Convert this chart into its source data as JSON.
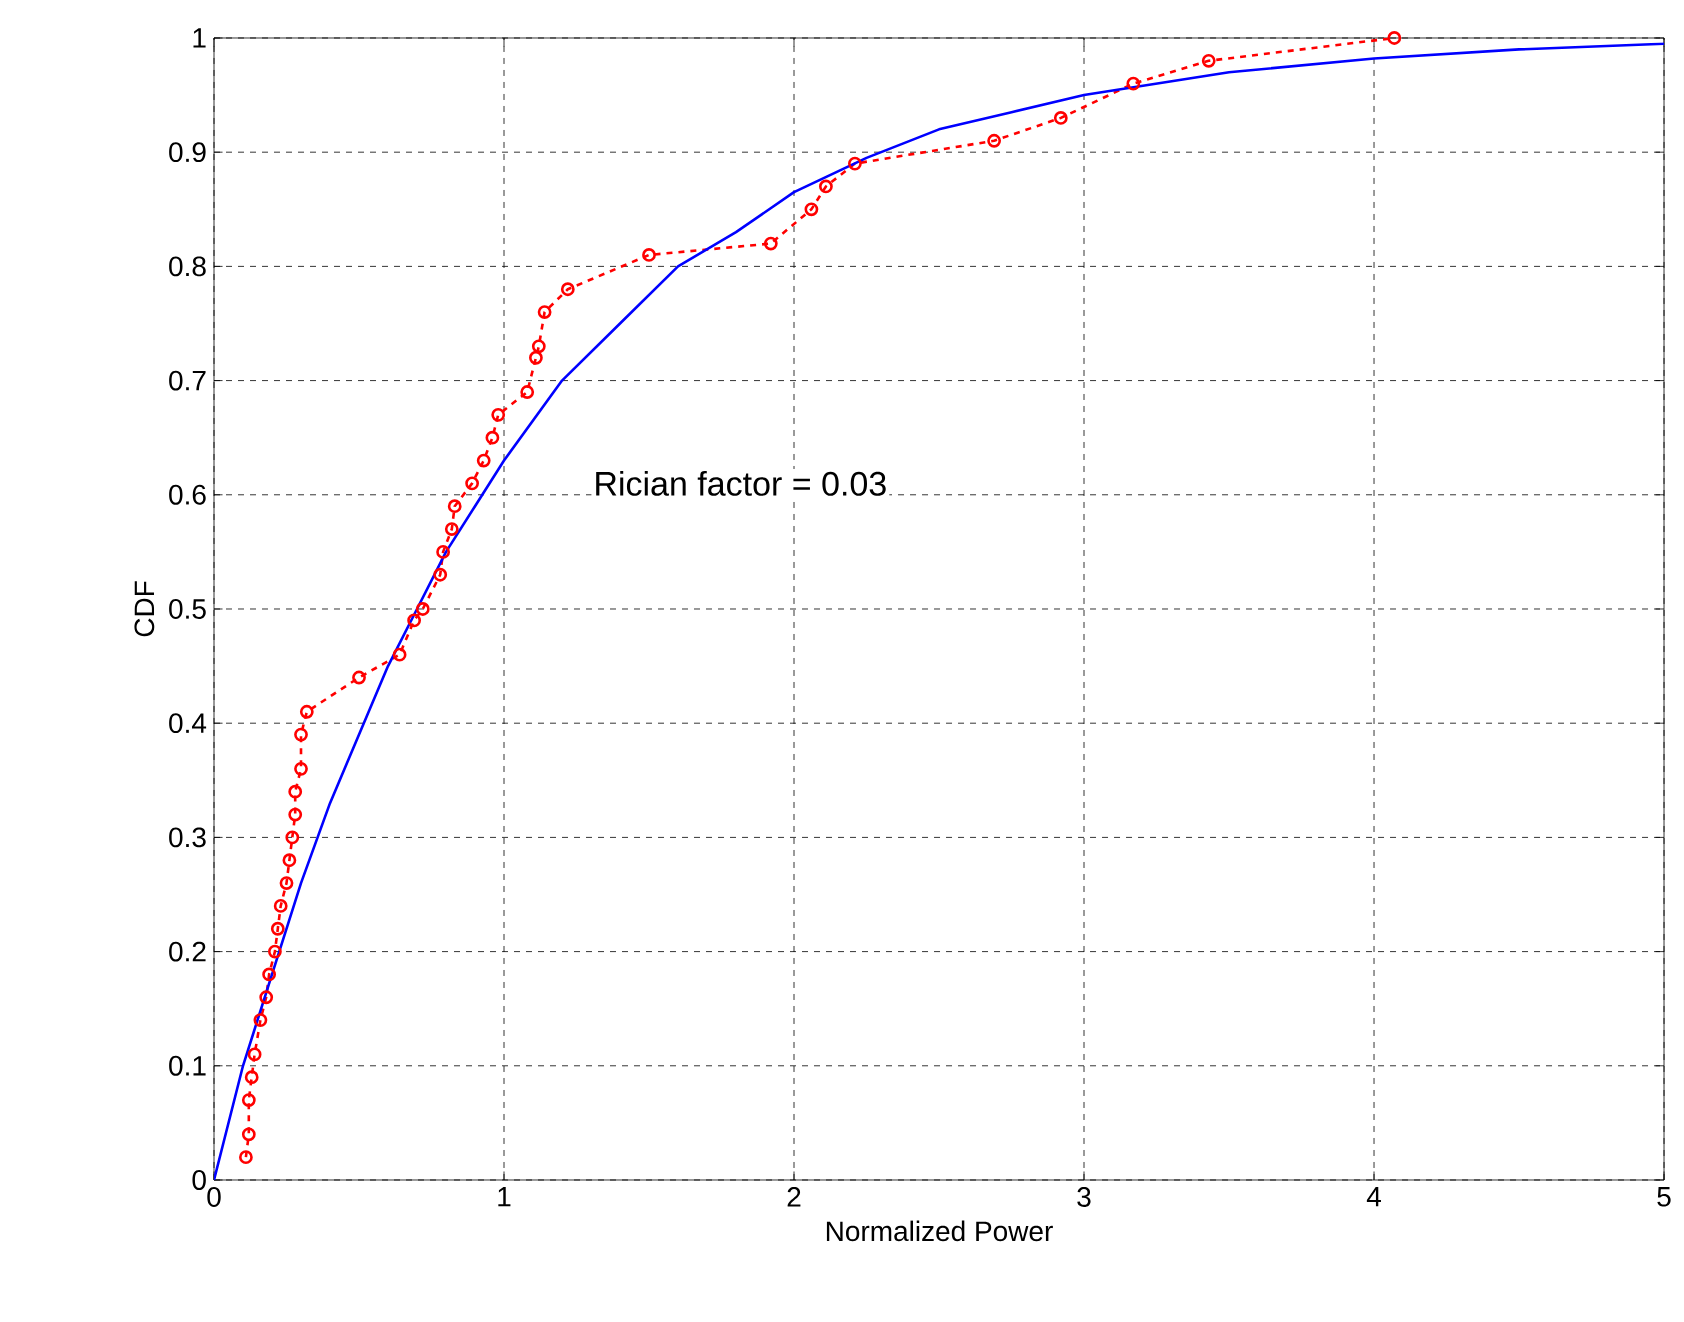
{
  "chart_data": {
    "type": "line",
    "xlabel": "Normalized Power",
    "ylabel": "CDF",
    "annotations": [
      "Rician factor = 0.03"
    ],
    "series": [
      {
        "color": "#ff0000",
        "marker": "circle",
        "line_style": "dashed",
        "x": [
          0.11,
          0.12,
          0.12,
          0.13,
          0.14,
          0.16,
          0.18,
          0.19,
          0.21,
          0.22,
          0.23,
          0.25,
          0.26,
          0.27,
          0.28,
          0.28,
          0.3,
          0.3,
          0.32,
          0.5,
          0.64,
          0.69,
          0.72,
          0.78,
          0.79,
          0.82,
          0.83,
          0.89,
          0.93,
          0.96,
          0.98,
          1.08,
          1.11,
          1.12,
          1.14,
          1.22,
          1.5,
          1.92,
          2.06,
          2.11,
          2.21,
          2.69,
          2.92,
          3.17,
          3.43,
          4.07
        ],
        "values": [
          0.02,
          0.04,
          0.07,
          0.09,
          0.11,
          0.14,
          0.16,
          0.18,
          0.2,
          0.22,
          0.24,
          0.26,
          0.28,
          0.3,
          0.32,
          0.34,
          0.36,
          0.39,
          0.41,
          0.44,
          0.46,
          0.49,
          0.5,
          0.53,
          0.55,
          0.57,
          0.59,
          0.61,
          0.63,
          0.65,
          0.67,
          0.69,
          0.72,
          0.73,
          0.76,
          0.78,
          0.81,
          0.82,
          0.85,
          0.87,
          0.89,
          0.91,
          0.93,
          0.96,
          0.98,
          1.0
        ]
      },
      {
        "color": "#0000ff",
        "marker": "none",
        "line_style": "solid",
        "x": [
          0,
          0.1,
          0.2,
          0.3,
          0.4,
          0.5,
          0.6,
          0.7,
          0.8,
          0.9,
          1,
          1.2,
          1.4,
          1.6,
          1.8,
          2,
          2.25,
          2.5,
          2.75,
          3,
          3.5,
          4,
          4.5,
          5
        ],
        "values": [
          0,
          0.1,
          0.18,
          0.26,
          0.33,
          0.39,
          0.45,
          0.5,
          0.55,
          0.59,
          0.63,
          0.7,
          0.75,
          0.8,
          0.83,
          0.865,
          0.895,
          0.92,
          0.935,
          0.95,
          0.97,
          0.982,
          0.99,
          0.995
        ]
      }
    ],
    "xlim": [
      0,
      5
    ],
    "ylim": [
      0,
      1
    ],
    "xticks": [
      0,
      1,
      2,
      3,
      4,
      5
    ],
    "yticks": [
      0,
      0.1,
      0.2,
      0.3,
      0.4,
      0.5,
      0.6,
      0.7,
      0.8,
      0.9,
      1
    ],
    "grid": true
  }
}
